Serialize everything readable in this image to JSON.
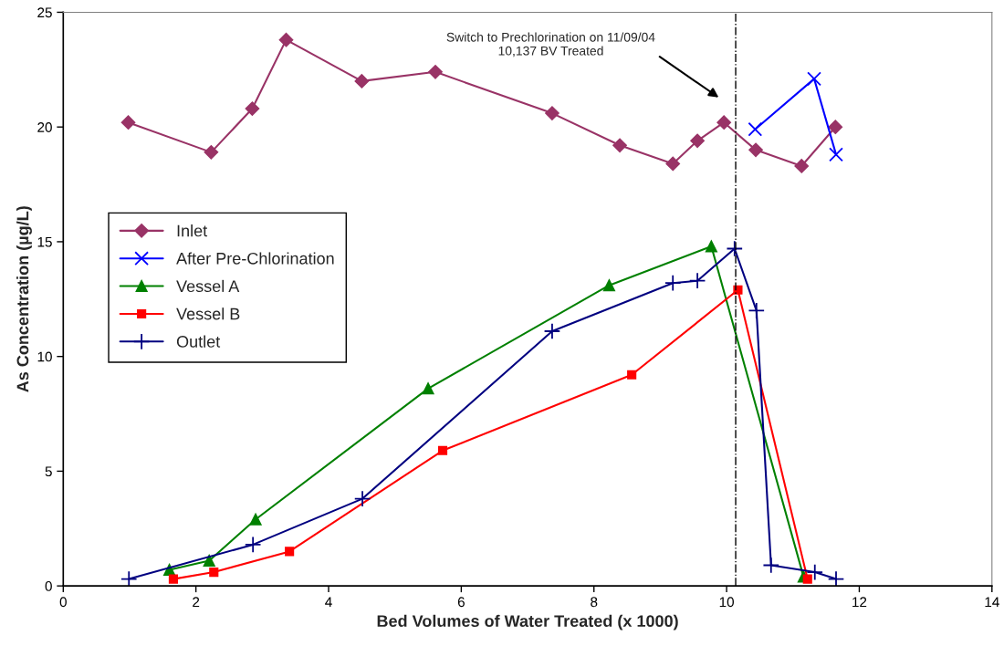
{
  "chart_data": {
    "type": "line",
    "xlabel": "Bed Volumes of Water Treated (x 1000)",
    "ylabel": "As Concentration (µg/L)",
    "xlim": [
      0,
      14
    ],
    "xticks": [
      0,
      2,
      4,
      6,
      8,
      10,
      12,
      14
    ],
    "ylim": [
      0,
      25
    ],
    "yticks": [
      0,
      5,
      10,
      15,
      20,
      25
    ],
    "grid": false,
    "legend": "left",
    "line_style": "solid",
    "ref_lines": [
      {
        "axis": "x",
        "value": 10.137,
        "color": "#000000",
        "line_style": "dashdot"
      }
    ],
    "annotations": [
      "Switch to Prechlorination on 11/09/04\n10,137 BV Treated"
    ],
    "series": [
      {
        "name": "Inlet",
        "color": "#993366",
        "marker": "diamond",
        "x": [
          0.98,
          2.23,
          2.85,
          3.36,
          4.5,
          5.61,
          7.37,
          8.39,
          9.19,
          9.56,
          9.96,
          10.44,
          11.13,
          11.64
        ],
        "values": [
          20.2,
          18.9,
          20.8,
          23.8,
          22.0,
          22.4,
          20.6,
          19.2,
          18.4,
          19.4,
          20.2,
          19.0,
          18.3,
          20.0
        ]
      },
      {
        "name": "After Pre-Chlorination",
        "color": "#0000ff",
        "marker": "cross",
        "x": [
          10.43,
          11.32,
          11.65
        ],
        "values": [
          19.9,
          22.1,
          18.8
        ]
      },
      {
        "name": "Vessel A",
        "color": "#008000",
        "marker": "triangle",
        "x": [
          1.6,
          2.2,
          2.9,
          5.5,
          8.23,
          9.77,
          11.16
        ],
        "values": [
          0.7,
          1.1,
          2.9,
          8.6,
          13.1,
          14.8,
          0.4
        ]
      },
      {
        "name": "Vessel B",
        "color": "#ff0000",
        "marker": "square",
        "x": [
          1.66,
          2.27,
          3.41,
          5.72,
          8.57,
          10.17,
          11.22
        ],
        "values": [
          0.3,
          0.6,
          1.5,
          5.9,
          9.2,
          12.9,
          0.3
        ]
      },
      {
        "name": "Outlet",
        "color": "#000080",
        "marker": "plus",
        "x": [
          0.99,
          2.86,
          4.51,
          7.37,
          9.19,
          9.56,
          10.12,
          10.45,
          10.67,
          11.33,
          11.65
        ],
        "values": [
          0.3,
          1.8,
          3.8,
          11.1,
          13.2,
          13.3,
          14.7,
          12.0,
          0.9,
          0.6,
          0.3
        ]
      }
    ]
  }
}
